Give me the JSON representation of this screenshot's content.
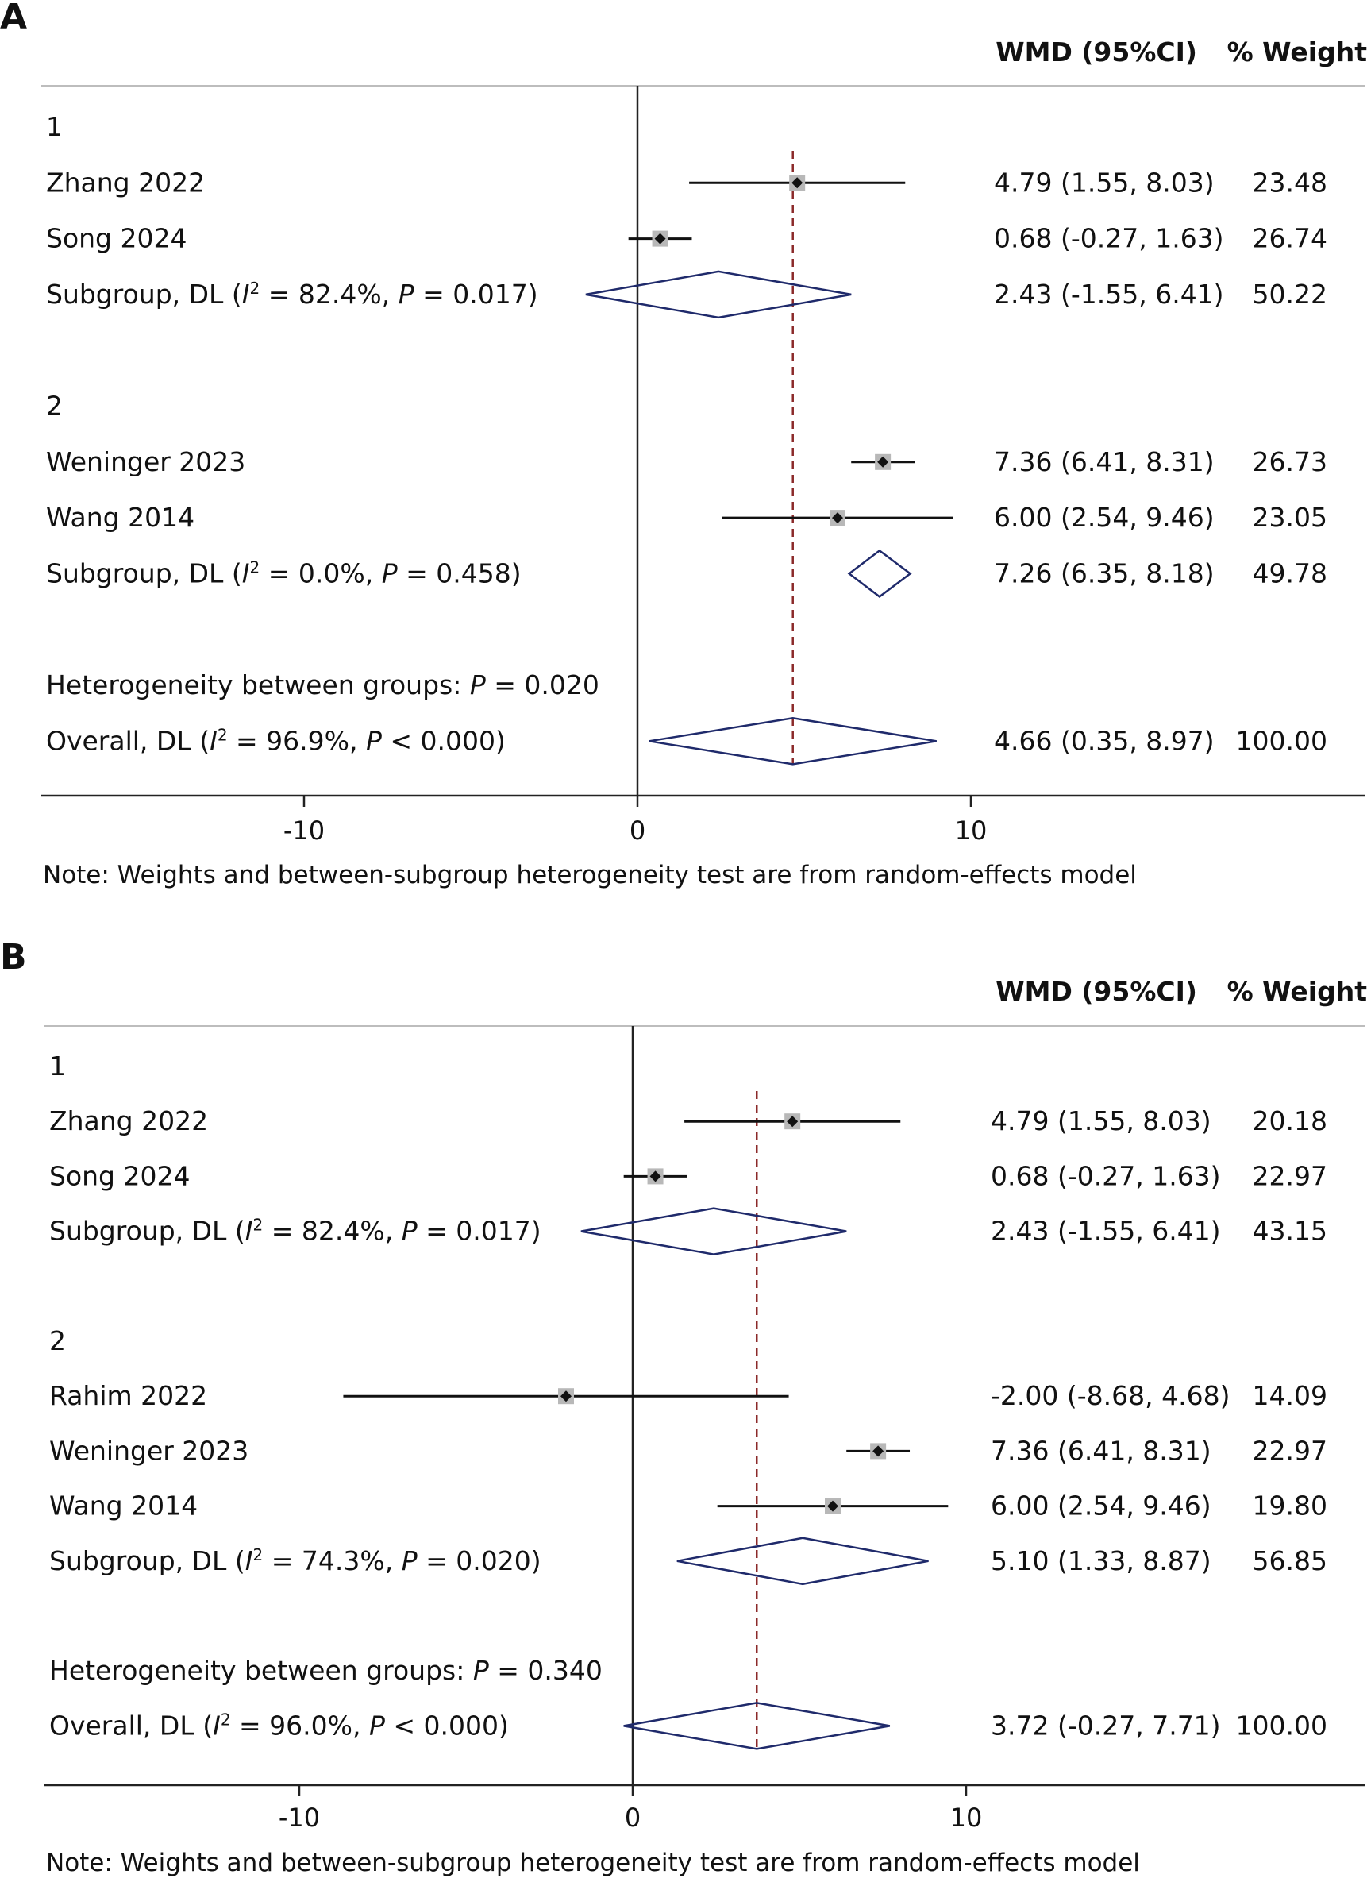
{
  "chart_data": [
    {
      "type": "forest",
      "panel": "A",
      "columns": {
        "estimate_header": "WMD (95%CI)",
        "weight_header": "% Weight"
      },
      "xlim": [
        -18.2,
        21.8
      ],
      "x_ticks": [
        -10,
        0,
        10
      ],
      "x_tick_labels": [
        "-10",
        "0",
        "10"
      ],
      "reference_line": 0,
      "overall_line": 4.66,
      "rows": [
        {
          "kind": "group",
          "label": "1"
        },
        {
          "kind": "study",
          "label": "Zhang 2022",
          "est": 4.79,
          "lo": 1.55,
          "hi": 8.03,
          "ci_text": "4.79 (1.55, 8.03)",
          "weight": "23.48"
        },
        {
          "kind": "study",
          "label": "Song 2024",
          "est": 0.68,
          "lo": -0.27,
          "hi": 1.63,
          "ci_text": "0.68 (-0.27, 1.63)",
          "weight": "26.74"
        },
        {
          "kind": "subgroup",
          "label": "Subgroup, DL (",
          "i2": "= 82.4%, ",
          "p": "= 0.017)",
          "est": 2.43,
          "lo": -1.55,
          "hi": 6.41,
          "ci_text": "2.43 (-1.55, 6.41)",
          "weight": "50.22"
        },
        {
          "kind": "blank"
        },
        {
          "kind": "group",
          "label": "2"
        },
        {
          "kind": "study",
          "label": "Weninger 2023",
          "est": 7.36,
          "lo": 6.41,
          "hi": 8.31,
          "ci_text": "7.36 (6.41, 8.31)",
          "weight": "26.73"
        },
        {
          "kind": "study",
          "label": "Wang 2014",
          "est": 6.0,
          "lo": 2.54,
          "hi": 9.46,
          "ci_text": "6.00 (2.54, 9.46)",
          "weight": "23.05"
        },
        {
          "kind": "subgroup",
          "label": "Subgroup, DL (",
          "i2": "= 0.0%, ",
          "p": "= 0.458)",
          "est": 7.26,
          "lo": 6.35,
          "hi": 8.18,
          "ci_text": "7.26 (6.35, 8.18)",
          "weight": "49.78"
        },
        {
          "kind": "blank"
        },
        {
          "kind": "het",
          "label": "Heterogeneity between groups: ",
          "p": "= 0.020"
        },
        {
          "kind": "overall",
          "label": "Overall, DL (",
          "i2": "= 96.9%, ",
          "p": "< 0.000)",
          "est": 4.66,
          "lo": 0.35,
          "hi": 8.97,
          "ci_text": "4.66 (0.35, 8.97)",
          "weight": "100.00"
        }
      ],
      "note": "Note: Weights and between-subgroup heterogeneity test are from random-effects model"
    },
    {
      "type": "forest",
      "panel": "B",
      "columns": {
        "estimate_header": "WMD (95%CI)",
        "weight_header": "% Weight"
      },
      "xlim": [
        -18.2,
        21.8
      ],
      "x_ticks": [
        -10,
        0,
        10
      ],
      "x_tick_labels": [
        "-10",
        "0",
        "10"
      ],
      "reference_line": 0,
      "overall_line": 3.72,
      "rows": [
        {
          "kind": "group",
          "label": "1"
        },
        {
          "kind": "study",
          "label": "Zhang 2022",
          "est": 4.79,
          "lo": 1.55,
          "hi": 8.03,
          "ci_text": "4.79 (1.55, 8.03)",
          "weight": "20.18"
        },
        {
          "kind": "study",
          "label": "Song 2024",
          "est": 0.68,
          "lo": -0.27,
          "hi": 1.63,
          "ci_text": "0.68 (-0.27, 1.63)",
          "weight": "22.97"
        },
        {
          "kind": "subgroup",
          "label": "Subgroup, DL (",
          "i2": "= 82.4%, ",
          "p": "= 0.017)",
          "est": 2.43,
          "lo": -1.55,
          "hi": 6.41,
          "ci_text": "2.43 (-1.55, 6.41)",
          "weight": "43.15"
        },
        {
          "kind": "blank"
        },
        {
          "kind": "group",
          "label": "2"
        },
        {
          "kind": "study",
          "label": "Rahim 2022",
          "est": -2.0,
          "lo": -8.68,
          "hi": 4.68,
          "ci_text": "-2.00 (-8.68, 4.68)",
          "weight": "14.09"
        },
        {
          "kind": "study",
          "label": "Weninger 2023",
          "est": 7.36,
          "lo": 6.41,
          "hi": 8.31,
          "ci_text": "7.36 (6.41, 8.31)",
          "weight": "22.97"
        },
        {
          "kind": "study",
          "label": "Wang 2014",
          "est": 6.0,
          "lo": 2.54,
          "hi": 9.46,
          "ci_text": "6.00 (2.54, 9.46)",
          "weight": "19.80"
        },
        {
          "kind": "subgroup",
          "label": "Subgroup, DL (",
          "i2": "= 74.3%, ",
          "p": "= 0.020)",
          "est": 5.1,
          "lo": 1.33,
          "hi": 8.87,
          "ci_text": "5.10 (1.33, 8.87)",
          "weight": "56.85"
        },
        {
          "kind": "blank"
        },
        {
          "kind": "het",
          "label": "Heterogeneity between groups: ",
          "p": "= 0.340"
        },
        {
          "kind": "overall",
          "label": "Overall, DL (",
          "i2": "= 96.0%, ",
          "p": "< 0.000)",
          "est": 3.72,
          "lo": -0.27,
          "hi": 7.71,
          "ci_text": "3.72 (-0.27, 7.71)",
          "weight": "100.00"
        }
      ],
      "note": "Note: Weights and between-subgroup heterogeneity test are from random-effects model"
    }
  ],
  "colors": {
    "diamond": "#1f2a6b",
    "overall_line": "#8b2a2a",
    "marker_box": "#b8b8b8",
    "axis": "#222222"
  }
}
